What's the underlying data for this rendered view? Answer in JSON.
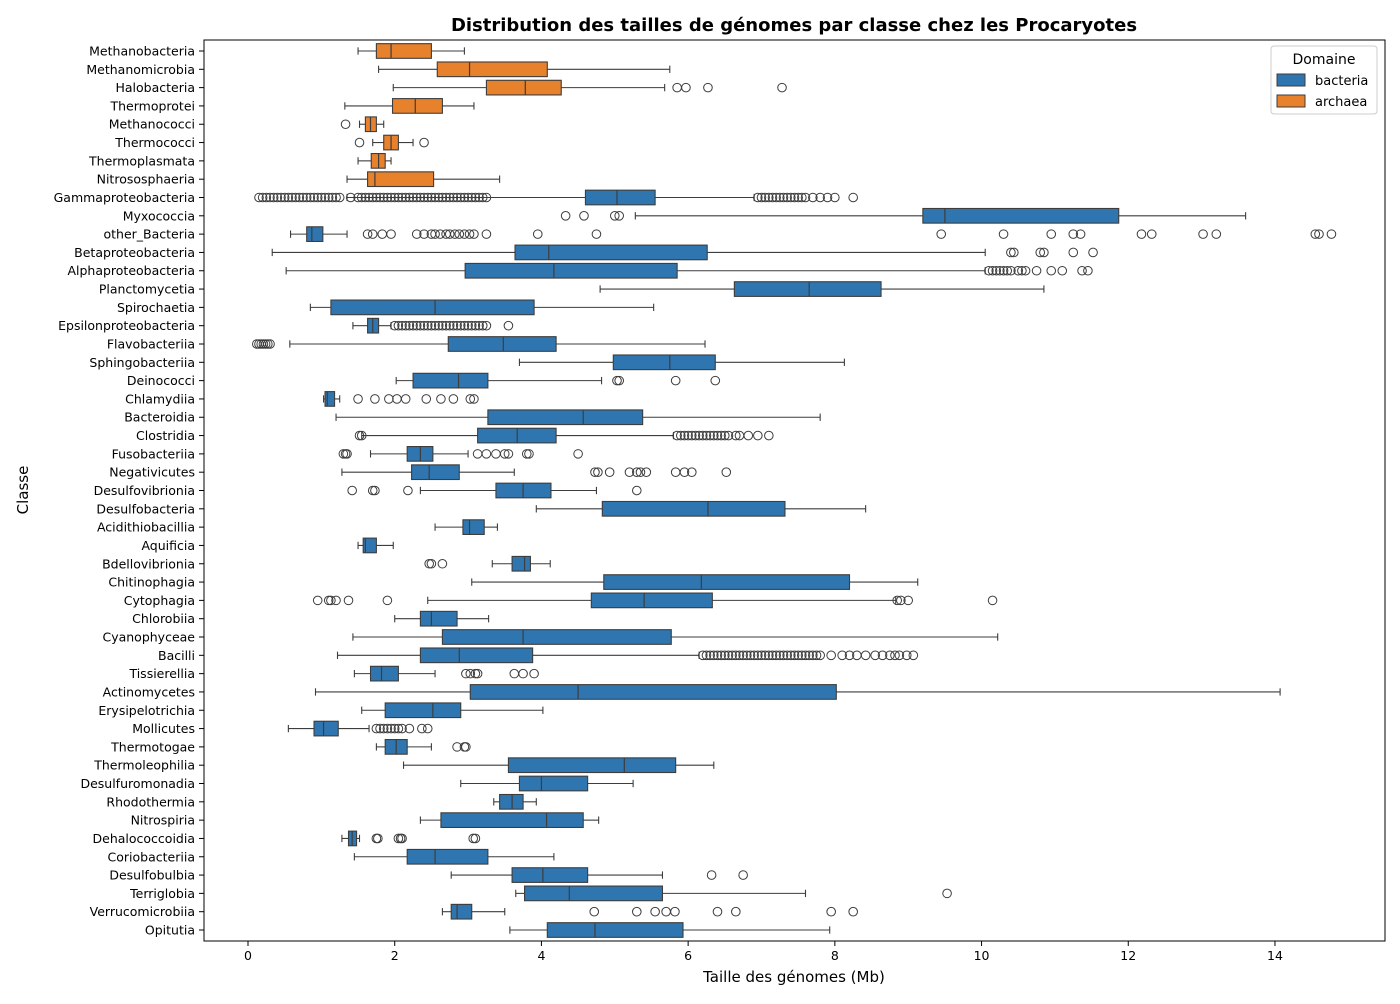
{
  "chart_data": {
    "type": "box",
    "orientation": "horizontal",
    "title": "Distribution des tailles de génomes par classe chez les Procaryotes",
    "xlabel": "Taille des génomes (Mb)",
    "ylabel": "Classe",
    "xlim": [
      -0.6,
      15.5
    ],
    "xticks": [
      0,
      2,
      4,
      6,
      8,
      10,
      12,
      14
    ],
    "grid": false,
    "legend": {
      "title": "Domaine",
      "placement": "top-right",
      "entries": [
        {
          "label": "bacteria",
          "color": "#2f76b0"
        },
        {
          "label": "archaea",
          "color": "#e7812b"
        }
      ]
    },
    "series": [
      {
        "category": "Methanobacteria",
        "domain": "archaea",
        "whislo": 1.5,
        "q1": 1.75,
        "median": 1.95,
        "q3": 2.5,
        "whishi": 2.95,
        "fliers": []
      },
      {
        "category": "Methanomicrobia",
        "domain": "archaea",
        "whislo": 1.78,
        "q1": 2.58,
        "median": 3.02,
        "q3": 4.08,
        "whishi": 5.75,
        "fliers": []
      },
      {
        "category": "Halobacteria",
        "domain": "archaea",
        "whislo": 1.98,
        "q1": 3.25,
        "median": 3.78,
        "q3": 4.27,
        "whishi": 5.68,
        "fliers": [
          5.85,
          5.97,
          6.27,
          7.28
        ]
      },
      {
        "category": "Thermoprotei",
        "domain": "archaea",
        "whislo": 1.32,
        "q1": 1.97,
        "median": 2.28,
        "q3": 2.65,
        "whishi": 3.08,
        "fliers": []
      },
      {
        "category": "Methanococci",
        "domain": "archaea",
        "whislo": 1.52,
        "q1": 1.6,
        "median": 1.67,
        "q3": 1.75,
        "whishi": 1.85,
        "fliers": [
          1.33
        ]
      },
      {
        "category": "Thermococci",
        "domain": "archaea",
        "whislo": 1.7,
        "q1": 1.85,
        "median": 1.95,
        "q3": 2.05,
        "whishi": 2.25,
        "fliers": [
          1.52,
          2.4
        ]
      },
      {
        "category": "Thermoplasmata",
        "domain": "archaea",
        "whislo": 1.5,
        "q1": 1.68,
        "median": 1.78,
        "q3": 1.87,
        "whishi": 1.95,
        "fliers": []
      },
      {
        "category": "Nitrososphaeria",
        "domain": "archaea",
        "whislo": 1.35,
        "q1": 1.63,
        "median": 1.73,
        "q3": 2.53,
        "whishi": 3.43,
        "fliers": []
      },
      {
        "category": "Gammaproteobacteria",
        "domain": "bacteria",
        "whislo": 1.35,
        "q1": 4.6,
        "median": 5.03,
        "q3": 5.55,
        "whishi": 6.9,
        "fliers": [
          0.15,
          0.2,
          0.25,
          0.3,
          0.35,
          0.4,
          0.45,
          0.5,
          0.55,
          0.6,
          0.65,
          0.7,
          0.75,
          0.8,
          0.85,
          0.9,
          0.95,
          1.0,
          1.05,
          1.1,
          1.15,
          1.2,
          1.25,
          1.4,
          1.5,
          1.55,
          1.6,
          1.65,
          1.7,
          1.75,
          1.8,
          1.85,
          1.9,
          1.95,
          2.0,
          2.05,
          2.1,
          2.15,
          2.2,
          2.25,
          2.3,
          2.35,
          2.4,
          2.45,
          2.5,
          2.55,
          2.6,
          2.65,
          2.7,
          2.75,
          2.8,
          2.85,
          2.9,
          2.95,
          3.0,
          3.05,
          3.1,
          3.15,
          3.2,
          3.25,
          6.95,
          7.0,
          7.05,
          7.1,
          7.15,
          7.2,
          7.25,
          7.3,
          7.35,
          7.4,
          7.45,
          7.5,
          7.55,
          7.6,
          7.7,
          7.8,
          7.9,
          8.0,
          8.25
        ]
      },
      {
        "category": "Myxococcia",
        "domain": "bacteria",
        "whislo": 5.28,
        "q1": 9.2,
        "median": 9.5,
        "q3": 11.87,
        "whishi": 13.6,
        "fliers": [
          4.33,
          4.58,
          5.0,
          5.06
        ]
      },
      {
        "category": "other_Bacteria",
        "domain": "bacteria",
        "whislo": 0.58,
        "q1": 0.8,
        "median": 0.87,
        "q3": 1.02,
        "whishi": 1.35,
        "fliers": [
          1.63,
          1.7,
          1.83,
          1.95,
          2.3,
          2.4,
          2.5,
          2.55,
          2.62,
          2.7,
          2.75,
          2.82,
          2.88,
          2.95,
          3.02,
          3.08,
          3.25,
          3.95,
          4.75,
          9.45,
          10.3,
          10.95,
          11.25,
          11.35,
          12.18,
          12.32,
          13.02,
          13.2,
          14.55,
          14.6,
          14.77
        ]
      },
      {
        "category": "Betaproteobacteria",
        "domain": "bacteria",
        "whislo": 0.33,
        "q1": 3.64,
        "median": 4.1,
        "q3": 6.26,
        "whishi": 10.05,
        "fliers": [
          10.4,
          10.44,
          10.8,
          10.85,
          11.25,
          11.52
        ]
      },
      {
        "category": "Alphaproteobacteria",
        "domain": "bacteria",
        "whislo": 0.52,
        "q1": 2.96,
        "median": 4.17,
        "q3": 5.85,
        "whishi": 10.05,
        "fliers": [
          10.1,
          10.15,
          10.2,
          10.25,
          10.3,
          10.35,
          10.4,
          10.5,
          10.55,
          10.6,
          10.75,
          10.95,
          11.1,
          11.37,
          11.45
        ]
      },
      {
        "category": "Planctomycetia",
        "domain": "bacteria",
        "whislo": 4.8,
        "q1": 6.63,
        "median": 7.65,
        "q3": 8.63,
        "whishi": 10.85,
        "fliers": []
      },
      {
        "category": "Spirochaetia",
        "domain": "bacteria",
        "whislo": 0.85,
        "q1": 1.13,
        "median": 2.55,
        "q3": 3.9,
        "whishi": 5.53,
        "fliers": []
      },
      {
        "category": "Epsilonproteobacteria",
        "domain": "bacteria",
        "whislo": 1.43,
        "q1": 1.63,
        "median": 1.7,
        "q3": 1.78,
        "whishi": 1.95,
        "fliers": [
          2.0,
          2.05,
          2.1,
          2.15,
          2.2,
          2.25,
          2.3,
          2.35,
          2.4,
          2.45,
          2.5,
          2.55,
          2.6,
          2.65,
          2.7,
          2.75,
          2.8,
          2.85,
          2.9,
          2.95,
          3.0,
          3.05,
          3.1,
          3.15,
          3.2,
          3.25,
          3.55
        ]
      },
      {
        "category": "Flavobacteriia",
        "domain": "bacteria",
        "whislo": 0.57,
        "q1": 2.73,
        "median": 3.48,
        "q3": 4.2,
        "whishi": 6.23,
        "fliers": [
          0.12,
          0.15,
          0.18,
          0.21,
          0.24,
          0.27,
          0.3
        ]
      },
      {
        "category": "Sphingobacteriia",
        "domain": "bacteria",
        "whislo": 3.7,
        "q1": 4.98,
        "median": 5.75,
        "q3": 6.37,
        "whishi": 8.13,
        "fliers": []
      },
      {
        "category": "Deinococci",
        "domain": "bacteria",
        "whislo": 2.02,
        "q1": 2.25,
        "median": 2.87,
        "q3": 3.27,
        "whishi": 4.82,
        "fliers": [
          5.03,
          5.06,
          5.83,
          6.37
        ]
      },
      {
        "category": "Chlamydiia",
        "domain": "bacteria",
        "whislo": 1.03,
        "q1": 1.05,
        "median": 1.08,
        "q3": 1.18,
        "whishi": 1.25,
        "fliers": [
          1.5,
          1.73,
          1.92,
          2.03,
          2.15,
          2.43,
          2.63,
          2.8,
          3.03,
          3.08
        ]
      },
      {
        "category": "Bacteroidia",
        "domain": "bacteria",
        "whislo": 1.2,
        "q1": 3.27,
        "median": 4.57,
        "q3": 5.38,
        "whishi": 7.8,
        "fliers": []
      },
      {
        "category": "Clostridia",
        "domain": "bacteria",
        "whislo": 1.55,
        "q1": 3.13,
        "median": 3.67,
        "q3": 4.2,
        "whishi": 5.8,
        "fliers": [
          1.52,
          1.55,
          5.85,
          5.9,
          5.95,
          6.0,
          6.05,
          6.1,
          6.15,
          6.2,
          6.25,
          6.3,
          6.35,
          6.4,
          6.45,
          6.5,
          6.55,
          6.65,
          6.7,
          6.82,
          6.95,
          7.1
        ]
      },
      {
        "category": "Fusobacteriia",
        "domain": "bacteria",
        "whislo": 1.67,
        "q1": 2.17,
        "median": 2.35,
        "q3": 2.52,
        "whishi": 3.0,
        "fliers": [
          1.3,
          1.33,
          1.35,
          3.13,
          3.25,
          3.38,
          3.5,
          3.55,
          3.8,
          3.83,
          4.5
        ]
      },
      {
        "category": "Negativicutes",
        "domain": "bacteria",
        "whislo": 1.28,
        "q1": 2.23,
        "median": 2.47,
        "q3": 2.88,
        "whishi": 3.63,
        "fliers": [
          4.73,
          4.77,
          4.93,
          5.2,
          5.3,
          5.35,
          5.43,
          5.83,
          5.95,
          6.05,
          6.52
        ]
      },
      {
        "category": "Desulfovibrionia",
        "domain": "bacteria",
        "whislo": 2.35,
        "q1": 3.38,
        "median": 3.75,
        "q3": 4.13,
        "whishi": 4.75,
        "fliers": [
          1.42,
          1.7,
          1.73,
          2.18,
          5.3
        ]
      },
      {
        "category": "Desulfobacteria",
        "domain": "bacteria",
        "whislo": 3.93,
        "q1": 4.83,
        "median": 6.27,
        "q3": 7.32,
        "whishi": 8.42,
        "fliers": []
      },
      {
        "category": "Acidithiobacillia",
        "domain": "bacteria",
        "whislo": 2.55,
        "q1": 2.93,
        "median": 3.02,
        "q3": 3.22,
        "whishi": 3.4,
        "fliers": []
      },
      {
        "category": "Aquificia",
        "domain": "bacteria",
        "whislo": 1.5,
        "q1": 1.57,
        "median": 1.6,
        "q3": 1.75,
        "whishi": 1.98,
        "fliers": []
      },
      {
        "category": "Bdellovibrionia",
        "domain": "bacteria",
        "whislo": 3.33,
        "q1": 3.6,
        "median": 3.77,
        "q3": 3.85,
        "whishi": 4.12,
        "fliers": [
          2.47,
          2.5,
          2.65
        ]
      },
      {
        "category": "Chitinophagia",
        "domain": "bacteria",
        "whislo": 3.05,
        "q1": 4.85,
        "median": 6.18,
        "q3": 8.2,
        "whishi": 9.13,
        "fliers": []
      },
      {
        "category": "Cytophagia",
        "domain": "bacteria",
        "whislo": 2.45,
        "q1": 4.68,
        "median": 5.4,
        "q3": 6.33,
        "whishi": 8.83,
        "fliers": [
          0.95,
          1.1,
          1.13,
          1.2,
          1.37,
          1.9,
          8.85,
          8.9,
          9.0,
          10.15
        ]
      },
      {
        "category": "Chlorobiia",
        "domain": "bacteria",
        "whislo": 2.0,
        "q1": 2.35,
        "median": 2.5,
        "q3": 2.85,
        "whishi": 3.28,
        "fliers": []
      },
      {
        "category": "Cyanophyceae",
        "domain": "bacteria",
        "whislo": 1.43,
        "q1": 2.65,
        "median": 3.75,
        "q3": 5.77,
        "whishi": 10.22,
        "fliers": []
      },
      {
        "category": "Bacilli",
        "domain": "bacteria",
        "whislo": 1.22,
        "q1": 2.35,
        "median": 2.88,
        "q3": 3.88,
        "whishi": 6.15,
        "fliers": [
          6.2,
          6.25,
          6.3,
          6.35,
          6.4,
          6.45,
          6.5,
          6.55,
          6.6,
          6.65,
          6.7,
          6.75,
          6.8,
          6.85,
          6.9,
          6.95,
          7.0,
          7.05,
          7.1,
          7.15,
          7.2,
          7.25,
          7.3,
          7.35,
          7.4,
          7.45,
          7.5,
          7.55,
          7.6,
          7.65,
          7.7,
          7.75,
          7.8,
          7.95,
          8.1,
          8.2,
          8.3,
          8.42,
          8.55,
          8.65,
          8.75,
          8.82,
          8.88,
          8.98,
          9.07
        ]
      },
      {
        "category": "Tissierellia",
        "domain": "bacteria",
        "whislo": 1.45,
        "q1": 1.67,
        "median": 1.82,
        "q3": 2.05,
        "whishi": 2.55,
        "fliers": [
          2.97,
          3.03,
          3.1,
          3.13,
          3.63,
          3.75,
          3.9
        ]
      },
      {
        "category": "Actinomycetes",
        "domain": "bacteria",
        "whislo": 0.92,
        "q1": 3.03,
        "median": 4.5,
        "q3": 8.02,
        "whishi": 14.07,
        "fliers": []
      },
      {
        "category": "Erysipelotrichia",
        "domain": "bacteria",
        "whislo": 1.55,
        "q1": 1.87,
        "median": 2.52,
        "q3": 2.9,
        "whishi": 4.02,
        "fliers": []
      },
      {
        "category": "Mollicutes",
        "domain": "bacteria",
        "whislo": 0.55,
        "q1": 0.9,
        "median": 1.03,
        "q3": 1.23,
        "whishi": 1.65,
        "fliers": [
          1.75,
          1.8,
          1.85,
          1.9,
          1.95,
          2.0,
          2.05,
          2.1,
          2.2,
          2.37,
          2.45
        ]
      },
      {
        "category": "Thermotogae",
        "domain": "bacteria",
        "whislo": 1.75,
        "q1": 1.87,
        "median": 2.02,
        "q3": 2.17,
        "whishi": 2.5,
        "fliers": [
          2.85,
          2.95,
          2.97
        ]
      },
      {
        "category": "Thermoleophilia",
        "domain": "bacteria",
        "whislo": 2.12,
        "q1": 3.55,
        "median": 5.13,
        "q3": 5.83,
        "whishi": 6.35,
        "fliers": []
      },
      {
        "category": "Desulfuromonadia",
        "domain": "bacteria",
        "whislo": 2.9,
        "q1": 3.7,
        "median": 4.0,
        "q3": 4.63,
        "whishi": 5.25,
        "fliers": []
      },
      {
        "category": "Rhodothermia",
        "domain": "bacteria",
        "whislo": 3.35,
        "q1": 3.43,
        "median": 3.6,
        "q3": 3.75,
        "whishi": 3.93,
        "fliers": []
      },
      {
        "category": "Nitrospiria",
        "domain": "bacteria",
        "whislo": 2.35,
        "q1": 2.63,
        "median": 4.07,
        "q3": 4.57,
        "whishi": 4.78,
        "fliers": []
      },
      {
        "category": "Dehalococcoidia",
        "domain": "bacteria",
        "whislo": 1.28,
        "q1": 1.37,
        "median": 1.42,
        "q3": 1.48,
        "whishi": 1.52,
        "fliers": [
          1.75,
          1.77,
          2.05,
          2.08,
          2.1,
          3.07,
          3.1
        ]
      },
      {
        "category": "Coriobacteriia",
        "domain": "bacteria",
        "whislo": 1.45,
        "q1": 2.17,
        "median": 2.55,
        "q3": 3.27,
        "whishi": 4.17,
        "fliers": []
      },
      {
        "category": "Desulfobulbia",
        "domain": "bacteria",
        "whislo": 2.77,
        "q1": 3.6,
        "median": 4.02,
        "q3": 4.63,
        "whishi": 5.65,
        "fliers": [
          6.32,
          6.75
        ]
      },
      {
        "category": "Terriglobia",
        "domain": "bacteria",
        "whislo": 3.65,
        "q1": 3.77,
        "median": 4.38,
        "q3": 5.65,
        "whishi": 7.6,
        "fliers": [
          9.53
        ]
      },
      {
        "category": "Verrucomicrobiia",
        "domain": "bacteria",
        "whislo": 2.65,
        "q1": 2.77,
        "median": 2.85,
        "q3": 3.05,
        "whishi": 3.5,
        "fliers": [
          4.72,
          5.3,
          5.55,
          5.7,
          5.82,
          6.4,
          6.65,
          7.95,
          8.25
        ]
      },
      {
        "category": "Opitutia",
        "domain": "bacteria",
        "whislo": 3.57,
        "q1": 4.08,
        "median": 4.73,
        "q3": 5.93,
        "whishi": 7.93,
        "fliers": []
      }
    ]
  }
}
